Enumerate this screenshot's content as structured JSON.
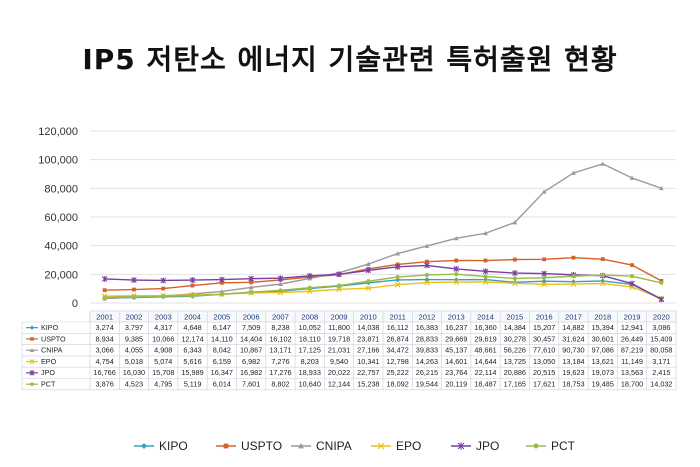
{
  "title": "IP5 저탄소 에너지 기술관련 특허출원 현황",
  "chart_data": {
    "type": "line",
    "x": [
      "2001",
      "2002",
      "2003",
      "2004",
      "2005",
      "2006",
      "2007",
      "2008",
      "2009",
      "2010",
      "2011",
      "2012",
      "2013",
      "2014",
      "2015",
      "2016",
      "2017",
      "2018",
      "2019",
      "2020"
    ],
    "ylim": [
      0,
      120000
    ],
    "yticks": [
      "0",
      "20,000",
      "40,000",
      "60,000",
      "80,000",
      "100,000",
      "120,000"
    ],
    "ytick_values": [
      0,
      20000,
      40000,
      60000,
      80000,
      100000,
      120000
    ],
    "grid": true,
    "legend_position": "bottom",
    "series": [
      {
        "name": "KIPO",
        "color": "#3a9ec0",
        "marker": "diamond",
        "values": [
          3274,
          3797,
          4317,
          4648,
          6147,
          7509,
          8238,
          10052,
          11800,
          14038,
          16112,
          16383,
          16237,
          16360,
          14384,
          15207,
          14882,
          15394,
          12941,
          3086
        ],
        "labels": [
          "3,274",
          "3,797",
          "4,317",
          "4,648",
          "6,147",
          "7,509",
          "8,238",
          "10,052",
          "11,800",
          "14,038",
          "16,112",
          "16,383",
          "16,237",
          "16,360",
          "14,384",
          "15,207",
          "14,882",
          "15,394",
          "12,941",
          "3,086"
        ]
      },
      {
        "name": "USPTO",
        "color": "#d4622b",
        "marker": "square",
        "values": [
          8934,
          9385,
          10066,
          12174,
          14110,
          14404,
          16102,
          18110,
          19718,
          23871,
          26874,
          28833,
          29669,
          29619,
          30278,
          30457,
          31624,
          30601,
          26449,
          15409
        ],
        "labels": [
          "8,934",
          "9,385",
          "10,066",
          "12,174",
          "14,110",
          "14,404",
          "16,102",
          "18,110",
          "19,718",
          "23,871",
          "26,874",
          "28,833",
          "29,669",
          "29,619",
          "30,278",
          "30,457",
          "31,624",
          "30,601",
          "26,449",
          "15,409"
        ]
      },
      {
        "name": "CNIPA",
        "color": "#9a9a9a",
        "marker": "triangle",
        "values": [
          3066,
          4055,
          4908,
          6343,
          8042,
          10867,
          13171,
          17125,
          21031,
          27166,
          34472,
          39833,
          45137,
          48661,
          56226,
          77610,
          90730,
          97086,
          87219,
          80058
        ],
        "labels": [
          "3,066",
          "4,055",
          "4,908",
          "6,343",
          "8,042",
          "10,867",
          "13,171",
          "17,125",
          "21,031",
          "27,166",
          "34,472",
          "39,833",
          "45,137",
          "48,661",
          "56,226",
          "77,610",
          "90,730",
          "97,086",
          "87,219",
          "80,058"
        ]
      },
      {
        "name": "EPO",
        "color": "#e8c21a",
        "marker": "x",
        "values": [
          4754,
          5018,
          5074,
          5616,
          6159,
          6982,
          7276,
          8203,
          9540,
          10341,
          12798,
          14263,
          14601,
          14644,
          13725,
          13050,
          13184,
          13621,
          11149,
          3171
        ],
        "labels": [
          "4,754",
          "5,018",
          "5,074",
          "5,616",
          "6,159",
          "6,982",
          "7,276",
          "8,203",
          "9,540",
          "10,341",
          "12,798",
          "14,263",
          "14,601",
          "14,644",
          "13,725",
          "13,050",
          "13,184",
          "13,621",
          "11,149",
          "3,171"
        ]
      },
      {
        "name": "JPO",
        "color": "#7a3fa0",
        "marker": "star",
        "values": [
          16766,
          16030,
          15708,
          15989,
          16347,
          16982,
          17276,
          18933,
          20022,
          22757,
          25222,
          26215,
          23764,
          22114,
          20886,
          20515,
          19623,
          19073,
          13563,
          2415
        ],
        "labels": [
          "16,766",
          "16,030",
          "15,708",
          "15,989",
          "16,347",
          "16,982",
          "17,276",
          "18,933",
          "20,022",
          "22,757",
          "25,222",
          "26,215",
          "23,764",
          "22,114",
          "20,886",
          "20,515",
          "19,623",
          "19,073",
          "13,563",
          "2,415"
        ]
      },
      {
        "name": "PCT",
        "color": "#9bbb4a",
        "marker": "circle",
        "values": [
          3876,
          4523,
          4795,
          5119,
          6014,
          7601,
          8802,
          10640,
          12144,
          15238,
          18092,
          19544,
          20119,
          18487,
          17165,
          17621,
          18753,
          19485,
          18700,
          14032
        ],
        "labels": [
          "3,876",
          "4,523",
          "4,795",
          "5,119",
          "6,014",
          "7,601",
          "8,802",
          "10,640",
          "12,144",
          "15,238",
          "18,092",
          "19,544",
          "20,119",
          "18,487",
          "17,165",
          "17,621",
          "18,753",
          "19,485",
          "18,700",
          "14,032"
        ]
      }
    ]
  }
}
